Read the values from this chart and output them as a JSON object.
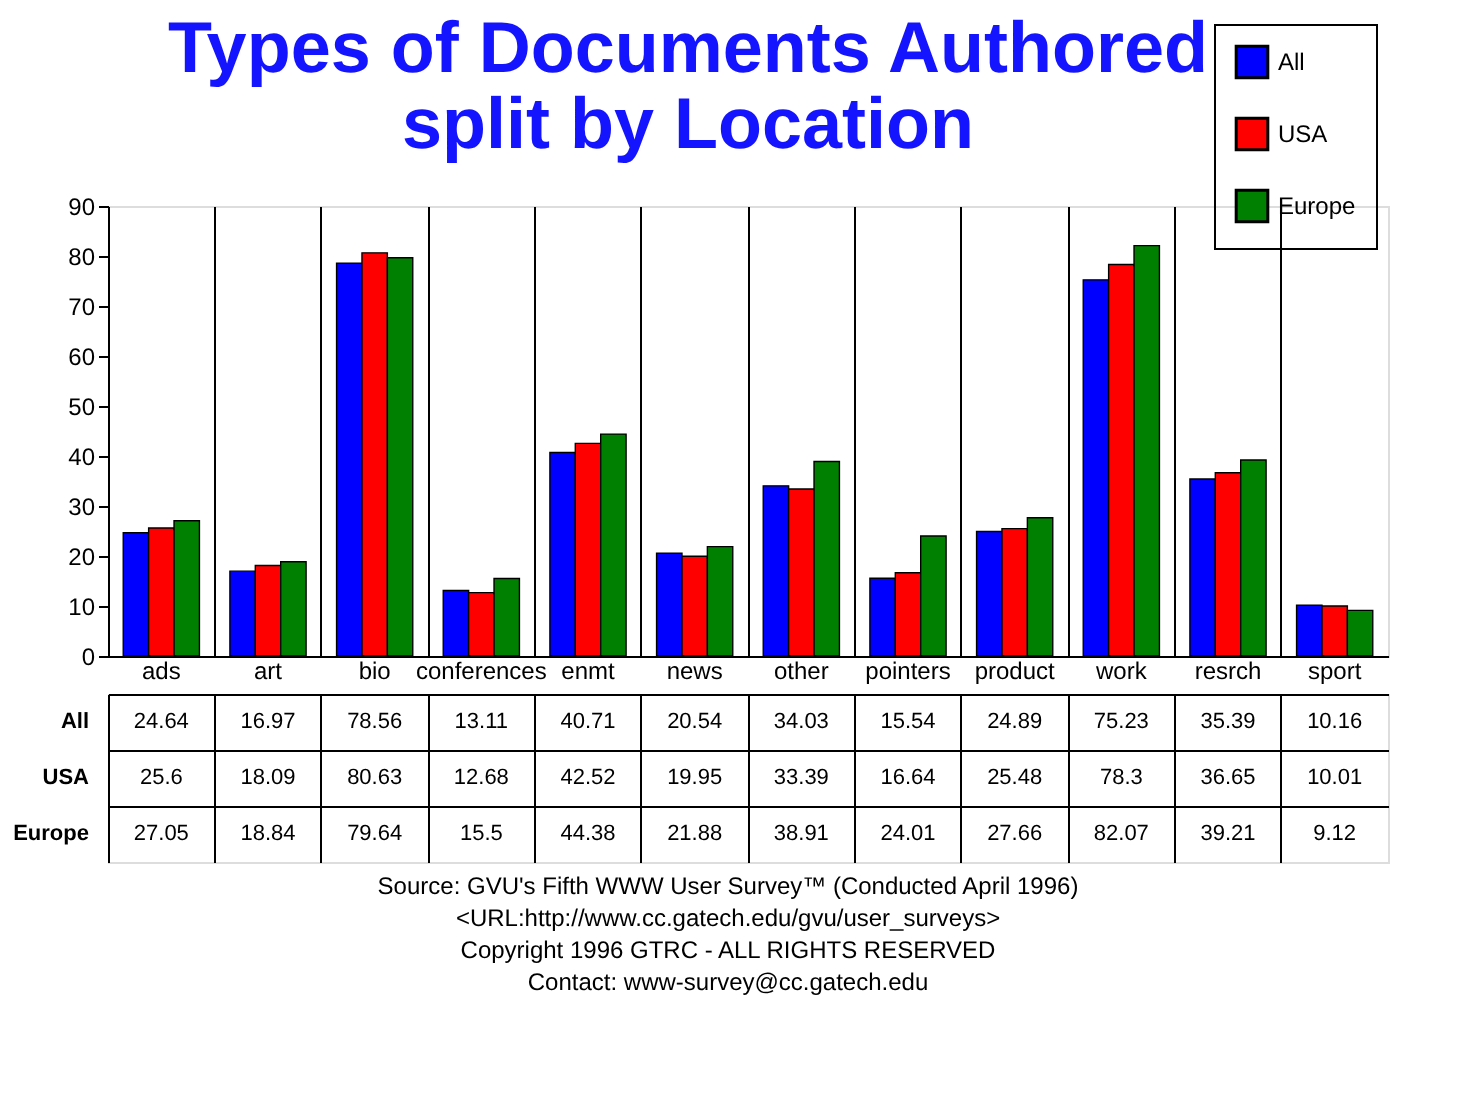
{
  "chart_data": {
    "type": "bar",
    "title": "Types of Documents Authored\nsplit by Location",
    "categories": [
      "ads",
      "art",
      "bio",
      "conferences",
      "enmt",
      "news",
      "other",
      "pointers",
      "product",
      "work",
      "resrch",
      "sport"
    ],
    "series": [
      {
        "name": "All",
        "color": "#0000ff",
        "values": [
          24.64,
          16.97,
          78.56,
          13.11,
          40.71,
          20.54,
          34.03,
          15.54,
          24.89,
          75.23,
          35.39,
          10.16
        ]
      },
      {
        "name": "USA",
        "color": "#ff0000",
        "values": [
          25.6,
          18.09,
          80.63,
          12.68,
          42.52,
          19.95,
          33.39,
          16.64,
          25.48,
          78.3,
          36.65,
          10.01
        ]
      },
      {
        "name": "Europe",
        "color": "#008000",
        "values": [
          27.05,
          18.84,
          79.64,
          15.5,
          44.38,
          21.88,
          38.91,
          24.01,
          27.66,
          82.07,
          39.21,
          9.12
        ]
      }
    ],
    "ylim": [
      0,
      90
    ],
    "yticks": [
      0,
      10,
      20,
      30,
      40,
      50,
      60,
      70,
      80,
      90
    ],
    "grid": "x",
    "legend": "top right",
    "data_labels": true,
    "annotations": [
      "Source: GVU's Fifth WWW User Survey™ (Conducted April 1996)",
      "<URL:http://www.cc.gatech.edu/gvu/user_surveys>",
      "Copyright 1996 GTRC -  ALL RIGHTS RESERVED",
      "Contact: www-survey@cc.gatech.edu"
    ]
  }
}
